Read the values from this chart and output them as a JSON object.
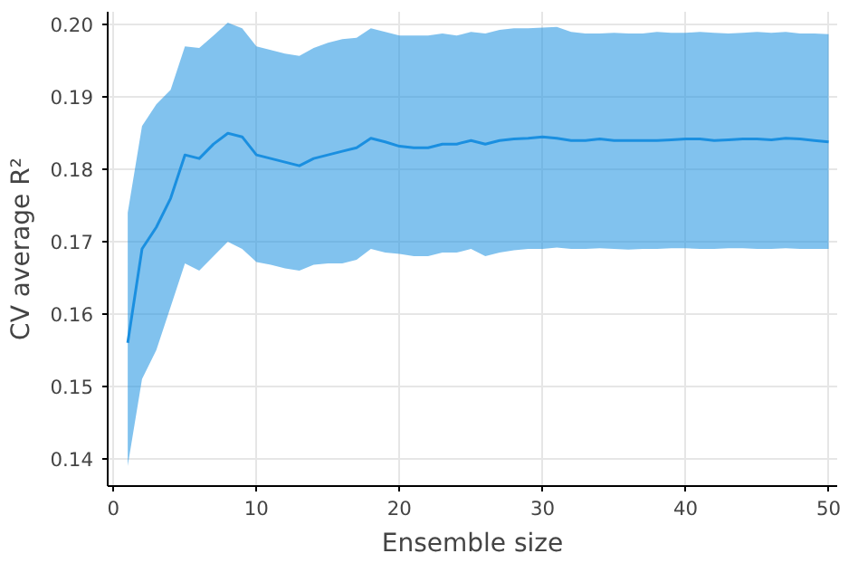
{
  "chart_data": {
    "type": "line",
    "xlabel": "Ensemble size",
    "ylabel": "CV average R²",
    "xlim": [
      -0.4,
      50.6
    ],
    "ylim": [
      0.1362,
      0.2018
    ],
    "xticks": [
      0,
      10,
      20,
      30,
      40,
      50
    ],
    "yticks": [
      0.14,
      0.15,
      0.16,
      0.17,
      0.18,
      0.19,
      {
        "value": 0.2,
        "label": "0.20"
      }
    ],
    "grid": true,
    "marker": "none",
    "line_style": "solid",
    "x": [
      1,
      2,
      3,
      4,
      5,
      6,
      7,
      8,
      9,
      10,
      11,
      12,
      13,
      14,
      15,
      16,
      17,
      18,
      19,
      20,
      21,
      22,
      23,
      24,
      25,
      26,
      27,
      28,
      29,
      30,
      31,
      32,
      33,
      34,
      35,
      36,
      37,
      38,
      39,
      40,
      41,
      42,
      43,
      44,
      45,
      46,
      47,
      48,
      49,
      50
    ],
    "series": [
      {
        "color": "#1a8fe0",
        "values": [
          0.156,
          0.169,
          0.172,
          0.176,
          0.182,
          0.1815,
          0.1835,
          0.185,
          0.1845,
          0.182,
          0.1815,
          0.181,
          0.1805,
          0.1815,
          0.182,
          0.1825,
          0.183,
          0.1843,
          0.1838,
          0.1832,
          0.183,
          0.183,
          0.1835,
          0.1835,
          0.184,
          0.1835,
          0.184,
          0.1842,
          0.1843,
          0.1845,
          0.1843,
          0.184,
          0.184,
          0.1842,
          0.184,
          0.184,
          0.184,
          0.184,
          0.1841,
          0.1842,
          0.1842,
          0.184,
          0.1841,
          0.1842,
          0.1842,
          0.1841,
          0.1843,
          0.1842,
          0.184,
          0.1838
        ],
        "lower": [
          0.139,
          0.151,
          0.155,
          0.161,
          0.167,
          0.166,
          0.168,
          0.17,
          0.169,
          0.1672,
          0.1668,
          0.1663,
          0.166,
          0.1668,
          0.167,
          0.167,
          0.1675,
          0.169,
          0.1685,
          0.1683,
          0.168,
          0.168,
          0.1685,
          0.1685,
          0.169,
          0.168,
          0.1685,
          0.1688,
          0.169,
          0.169,
          0.1692,
          0.169,
          0.169,
          0.1691,
          0.169,
          0.1689,
          0.169,
          0.169,
          0.1691,
          0.1691,
          0.169,
          0.169,
          0.1691,
          0.1691,
          0.169,
          0.169,
          0.1691,
          0.169,
          0.169,
          0.169
        ],
        "upper": [
          0.174,
          0.186,
          0.189,
          0.191,
          0.197,
          0.1968,
          0.1985,
          0.2003,
          0.1995,
          0.197,
          0.1965,
          0.196,
          0.1957,
          0.1968,
          0.1975,
          0.198,
          0.1982,
          0.1995,
          0.199,
          0.1985,
          0.1985,
          0.1985,
          0.1988,
          0.1985,
          0.199,
          0.1988,
          0.1993,
          0.1995,
          0.1995,
          0.1996,
          0.1997,
          0.199,
          0.1988,
          0.1988,
          0.1989,
          0.1988,
          0.1988,
          0.199,
          0.1989,
          0.1989,
          0.199,
          0.1989,
          0.1988,
          0.1989,
          0.199,
          0.1989,
          0.199,
          0.1988,
          0.1988,
          0.1987
        ]
      }
    ]
  }
}
